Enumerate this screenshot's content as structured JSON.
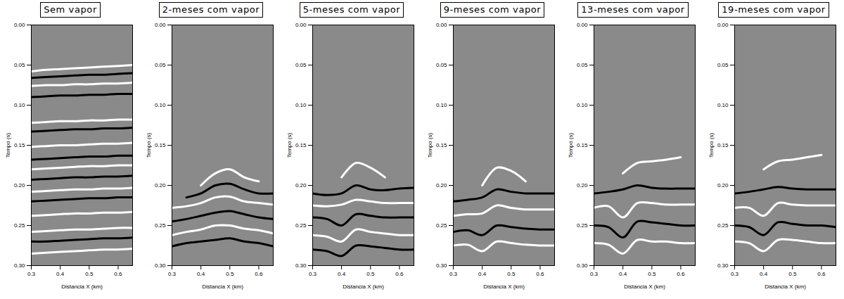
{
  "chart_data": [
    {
      "type": "line",
      "title": "Sem vapor",
      "x_label": "Distancia X (km)",
      "y_label": "Tempo (s)",
      "xlim": [
        0.3,
        0.65
      ],
      "xticks": [
        0.3,
        0.4,
        0.5,
        0.6
      ],
      "ylim": [
        0,
        0.3
      ],
      "yticks": [
        {
          "value": 0,
          "label": "0.00"
        },
        {
          "value": 0.05,
          "label": "0.05"
        },
        {
          "value": 0.1,
          "label": "0.10"
        },
        {
          "value": 0.15,
          "label": "0.15"
        },
        {
          "value": 0.2,
          "label": "0.20"
        },
        {
          "value": 0.25,
          "label": "0.25"
        },
        {
          "value": 0.3,
          "label": "0.30"
        }
      ],
      "x": [
        0.3,
        0.35,
        0.4,
        0.45,
        0.5,
        0.55,
        0.6,
        0.65
      ],
      "series": [
        {
          "color": "#ffffff",
          "values": [
            0.058,
            0.056,
            0.055,
            0.054,
            0.053,
            0.052,
            0.051,
            0.05
          ]
        },
        {
          "color": "#000000",
          "values": [
            0.066,
            0.065,
            0.064,
            0.063,
            0.062,
            0.062,
            0.061,
            0.06
          ]
        },
        {
          "color": "#ffffff",
          "values": [
            0.076,
            0.075,
            0.075,
            0.074,
            0.074,
            0.073,
            0.073,
            0.072
          ]
        },
        {
          "color": "#000000",
          "values": [
            0.09,
            0.089,
            0.088,
            0.088,
            0.087,
            0.087,
            0.086,
            0.086
          ]
        },
        {
          "color": "#ffffff",
          "values": [
            0.122,
            0.121,
            0.12,
            0.12,
            0.119,
            0.119,
            0.118,
            0.118
          ]
        },
        {
          "color": "#000000",
          "values": [
            0.133,
            0.132,
            0.131,
            0.13,
            0.13,
            0.129,
            0.129,
            0.128
          ]
        },
        {
          "color": "#ffffff",
          "values": [
            0.152,
            0.151,
            0.15,
            0.15,
            0.149,
            0.148,
            0.148,
            0.147
          ]
        },
        {
          "color": "#000000",
          "values": [
            0.168,
            0.167,
            0.166,
            0.165,
            0.164,
            0.164,
            0.163,
            0.163
          ]
        },
        {
          "color": "#ffffff",
          "values": [
            0.18,
            0.179,
            0.178,
            0.177,
            0.176,
            0.176,
            0.175,
            0.175
          ]
        },
        {
          "color": "#000000",
          "values": [
            0.193,
            0.192,
            0.191,
            0.19,
            0.19,
            0.189,
            0.189,
            0.188
          ]
        },
        {
          "color": "#ffffff",
          "values": [
            0.208,
            0.207,
            0.206,
            0.205,
            0.205,
            0.204,
            0.204,
            0.203
          ]
        },
        {
          "color": "#000000",
          "values": [
            0.22,
            0.219,
            0.218,
            0.217,
            0.216,
            0.216,
            0.215,
            0.215
          ]
        },
        {
          "color": "#ffffff",
          "values": [
            0.238,
            0.237,
            0.236,
            0.235,
            0.235,
            0.234,
            0.234,
            0.233
          ]
        },
        {
          "color": "#ffffff",
          "values": [
            0.258,
            0.257,
            0.256,
            0.255,
            0.255,
            0.254,
            0.253,
            0.253
          ]
        },
        {
          "color": "#000000",
          "values": [
            0.27,
            0.27,
            0.269,
            0.268,
            0.267,
            0.266,
            0.266,
            0.265
          ]
        },
        {
          "color": "#ffffff",
          "values": [
            0.285,
            0.284,
            0.283,
            0.282,
            0.281,
            0.28,
            0.28,
            0.279
          ]
        }
      ]
    },
    {
      "type": "line",
      "title": "2-meses com vapor",
      "x_label": "Distancia X (km)",
      "y_label": "Tempo (s)",
      "xlim": [
        0.3,
        0.65
      ],
      "xticks": [
        0.3,
        0.4,
        0.5,
        0.6
      ],
      "ylim": [
        0,
        0.3
      ],
      "yticks": [
        {
          "value": 0,
          "label": "0.00"
        },
        {
          "value": 0.05,
          "label": "0.05"
        },
        {
          "value": 0.1,
          "label": "0.10"
        },
        {
          "value": 0.15,
          "label": "0.15"
        },
        {
          "value": 0.2,
          "label": "0.20"
        },
        {
          "value": 0.25,
          "label": "0.25"
        },
        {
          "value": 0.3,
          "label": "0.30"
        }
      ],
      "x": [
        0.3,
        0.35,
        0.4,
        0.45,
        0.5,
        0.55,
        0.6,
        0.65
      ],
      "series": [
        {
          "color": "#ffffff",
          "values": [
            null,
            null,
            0.2,
            0.185,
            0.18,
            0.19,
            0.195,
            null
          ]
        },
        {
          "color": "#000000",
          "values": [
            null,
            0.215,
            0.21,
            0.2,
            0.198,
            0.205,
            0.21,
            0.21
          ]
        },
        {
          "color": "#ffffff",
          "values": [
            0.228,
            0.226,
            0.222,
            0.215,
            0.214,
            0.22,
            0.222,
            0.224
          ]
        },
        {
          "color": "#000000",
          "values": [
            0.245,
            0.242,
            0.238,
            0.234,
            0.232,
            0.236,
            0.24,
            0.242
          ]
        },
        {
          "color": "#ffffff",
          "values": [
            0.262,
            0.258,
            0.255,
            0.25,
            0.25,
            0.254,
            0.256,
            0.26
          ]
        },
        {
          "color": "#000000",
          "values": [
            0.276,
            0.272,
            0.27,
            0.268,
            0.266,
            0.27,
            0.272,
            0.276
          ]
        }
      ]
    },
    {
      "type": "line",
      "title": "5-meses com vapor",
      "x_label": "Distancia X (km)",
      "y_label": "Tempo (s)",
      "xlim": [
        0.3,
        0.65
      ],
      "xticks": [
        0.3,
        0.4,
        0.5,
        0.6
      ],
      "ylim": [
        0,
        0.3
      ],
      "yticks": [
        {
          "value": 0,
          "label": "0.00"
        },
        {
          "value": 0.05,
          "label": "0.05"
        },
        {
          "value": 0.1,
          "label": "0.10"
        },
        {
          "value": 0.15,
          "label": "0.15"
        },
        {
          "value": 0.2,
          "label": "0.20"
        },
        {
          "value": 0.25,
          "label": "0.25"
        },
        {
          "value": 0.3,
          "label": "0.30"
        }
      ],
      "x": [
        0.3,
        0.35,
        0.4,
        0.45,
        0.5,
        0.55,
        0.6,
        0.65
      ],
      "series": [
        {
          "color": "#ffffff",
          "values": [
            null,
            null,
            0.19,
            0.172,
            0.178,
            0.19,
            null,
            null
          ]
        },
        {
          "color": "#000000",
          "values": [
            0.21,
            0.212,
            0.21,
            0.2,
            0.205,
            0.206,
            0.204,
            0.203
          ]
        },
        {
          "color": "#ffffff",
          "values": [
            0.225,
            0.226,
            0.224,
            0.218,
            0.22,
            0.222,
            0.222,
            0.222
          ]
        },
        {
          "color": "#000000",
          "values": [
            0.24,
            0.242,
            0.25,
            0.236,
            0.238,
            0.24,
            0.24,
            0.24
          ]
        },
        {
          "color": "#ffffff",
          "values": [
            0.262,
            0.264,
            0.27,
            0.255,
            0.258,
            0.26,
            0.262,
            0.262
          ]
        },
        {
          "color": "#000000",
          "values": [
            0.28,
            0.282,
            0.288,
            0.275,
            0.276,
            0.278,
            0.28,
            0.28
          ]
        }
      ]
    },
    {
      "type": "line",
      "title": "9-meses com vapor",
      "x_label": "Distancia X (km)",
      "y_label": "Tempo (s)",
      "xlim": [
        0.3,
        0.65
      ],
      "xticks": [
        0.3,
        0.4,
        0.5,
        0.6
      ],
      "ylim": [
        0,
        0.3
      ],
      "yticks": [
        {
          "value": 0,
          "label": "0.00"
        },
        {
          "value": 0.05,
          "label": "0.05"
        },
        {
          "value": 0.1,
          "label": "0.10"
        },
        {
          "value": 0.15,
          "label": "0.15"
        },
        {
          "value": 0.2,
          "label": "0.20"
        },
        {
          "value": 0.25,
          "label": "0.25"
        },
        {
          "value": 0.3,
          "label": "0.30"
        }
      ],
      "x": [
        0.3,
        0.35,
        0.4,
        0.45,
        0.5,
        0.55,
        0.6,
        0.65
      ],
      "series": [
        {
          "color": "#ffffff",
          "values": [
            null,
            null,
            0.2,
            0.178,
            0.182,
            0.195,
            null,
            null
          ]
        },
        {
          "color": "#000000",
          "values": [
            0.22,
            0.218,
            0.215,
            0.205,
            0.208,
            0.21,
            0.21,
            0.21
          ]
        },
        {
          "color": "#ffffff",
          "values": [
            0.238,
            0.236,
            0.235,
            0.225,
            0.228,
            0.23,
            0.23,
            0.23
          ]
        },
        {
          "color": "#000000",
          "values": [
            0.258,
            0.256,
            0.262,
            0.25,
            0.252,
            0.254,
            0.255,
            0.255
          ]
        },
        {
          "color": "#ffffff",
          "values": [
            0.275,
            0.274,
            0.282,
            0.27,
            0.272,
            0.274,
            0.275,
            0.275
          ]
        }
      ]
    },
    {
      "type": "line",
      "title": "13-meses com vapor",
      "x_label": "Distancia X (km)",
      "y_label": "Tempo (s)",
      "xlim": [
        0.3,
        0.65
      ],
      "xticks": [
        0.3,
        0.4,
        0.5,
        0.6
      ],
      "ylim": [
        0,
        0.3
      ],
      "yticks": [
        {
          "value": 0,
          "label": "0.00"
        },
        {
          "value": 0.05,
          "label": "0.05"
        },
        {
          "value": 0.1,
          "label": "0.10"
        },
        {
          "value": 0.15,
          "label": "0.15"
        },
        {
          "value": 0.2,
          "label": "0.20"
        },
        {
          "value": 0.25,
          "label": "0.25"
        },
        {
          "value": 0.3,
          "label": "0.30"
        }
      ],
      "x": [
        0.3,
        0.35,
        0.4,
        0.45,
        0.5,
        0.55,
        0.6,
        0.65
      ],
      "series": [
        {
          "color": "#ffffff",
          "values": [
            null,
            null,
            0.185,
            0.172,
            0.17,
            0.168,
            0.165,
            null
          ]
        },
        {
          "color": "#000000",
          "values": [
            0.21,
            0.208,
            0.205,
            0.2,
            0.203,
            0.204,
            0.204,
            0.204
          ]
        },
        {
          "color": "#ffffff",
          "values": [
            0.228,
            0.226,
            0.24,
            0.222,
            0.222,
            0.224,
            0.224,
            0.224
          ]
        },
        {
          "color": "#000000",
          "values": [
            0.25,
            0.252,
            0.265,
            0.245,
            0.246,
            0.248,
            0.25,
            0.25
          ]
        },
        {
          "color": "#ffffff",
          "values": [
            0.272,
            0.274,
            0.285,
            0.268,
            0.27,
            0.27,
            0.272,
            0.272
          ]
        }
      ]
    },
    {
      "type": "line",
      "title": "19-meses com vapor",
      "x_label": "Distancia X (km)",
      "y_label": "Tempo (s)",
      "xlim": [
        0.3,
        0.65
      ],
      "xticks": [
        0.3,
        0.4,
        0.5,
        0.6
      ],
      "ylim": [
        0,
        0.3
      ],
      "yticks": [
        {
          "value": 0,
          "label": "0.00"
        },
        {
          "value": 0.05,
          "label": "0.05"
        },
        {
          "value": 0.1,
          "label": "0.10"
        },
        {
          "value": 0.15,
          "label": "0.15"
        },
        {
          "value": 0.2,
          "label": "0.20"
        },
        {
          "value": 0.25,
          "label": "0.25"
        },
        {
          "value": 0.3,
          "label": "0.30"
        }
      ],
      "x": [
        0.3,
        0.35,
        0.4,
        0.45,
        0.5,
        0.55,
        0.6,
        0.65
      ],
      "series": [
        {
          "color": "#ffffff",
          "values": [
            null,
            null,
            0.18,
            0.17,
            0.168,
            0.165,
            0.162,
            null
          ]
        },
        {
          "color": "#000000",
          "values": [
            0.21,
            0.208,
            0.205,
            0.202,
            0.204,
            0.205,
            0.205,
            0.205
          ]
        },
        {
          "color": "#ffffff",
          "values": [
            0.228,
            0.228,
            0.238,
            0.222,
            0.224,
            0.225,
            0.225,
            0.225
          ]
        },
        {
          "color": "#000000",
          "values": [
            0.25,
            0.252,
            0.262,
            0.246,
            0.248,
            0.25,
            0.25,
            0.252
          ]
        },
        {
          "color": "#ffffff",
          "values": [
            0.27,
            0.272,
            0.282,
            0.268,
            0.268,
            0.27,
            0.272,
            0.272
          ]
        }
      ]
    }
  ]
}
